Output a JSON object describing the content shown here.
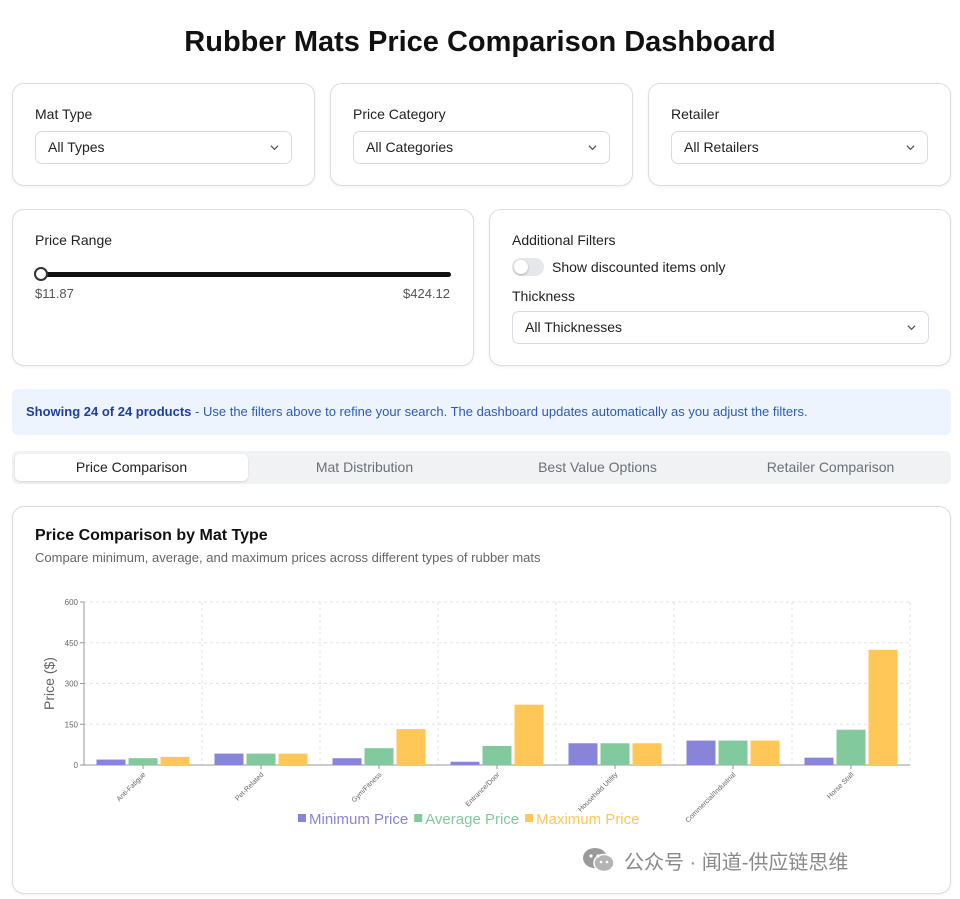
{
  "title": "Rubber Mats Price Comparison Dashboard",
  "filters": {
    "mat_type": {
      "label": "Mat Type",
      "value": "All Types"
    },
    "price_category": {
      "label": "Price Category",
      "value": "All Categories"
    },
    "retailer": {
      "label": "Retailer",
      "value": "All Retailers"
    }
  },
  "price_range": {
    "label": "Price Range",
    "min_label": "$11.87",
    "max_label": "$424.12",
    "min": 11.87,
    "max": 424.12,
    "current": 11.87
  },
  "additional_filters": {
    "label": "Additional Filters",
    "discount_toggle_label": "Show discounted items only",
    "discount_toggle_on": false,
    "thickness_label": "Thickness",
    "thickness_value": "All Thicknesses"
  },
  "info": {
    "bold": "Showing 24 of 24 products",
    "rest": " - Use the filters above to refine your search. The dashboard updates automatically as you adjust the filters."
  },
  "tabs": [
    "Price Comparison",
    "Mat Distribution",
    "Best Value Options",
    "Retailer Comparison"
  ],
  "active_tab": 0,
  "chart_header": {
    "title": "Price Comparison by Mat Type",
    "subtitle": "Compare minimum, average, and maximum prices across different types of rubber mats"
  },
  "colors": {
    "min": "#8884d8",
    "avg": "#82ca9d",
    "max": "#ffc658"
  },
  "chart_data": {
    "type": "bar",
    "categories": [
      "Anti-Fatigue",
      "Pet-Related",
      "Gym/Fitness",
      "Entrance/Door",
      "Household Utility",
      "Commercial/Industrial",
      "Horse Stall"
    ],
    "series": [
      {
        "name": "Minimum Price",
        "values": [
          20,
          42,
          25,
          12,
          80,
          90,
          27
        ]
      },
      {
        "name": "Average Price",
        "values": [
          25,
          42,
          62,
          70,
          80,
          90,
          130
        ]
      },
      {
        "name": "Maximum Price",
        "values": [
          30,
          42,
          132,
          222,
          80,
          90,
          424
        ]
      }
    ],
    "ylabel": "Price ($)",
    "yticks": [
      "0",
      "150",
      "300",
      "450",
      "600"
    ],
    "ylim": [
      0,
      600
    ],
    "grid": true,
    "legend": "bottom"
  },
  "watermark": "公众号 · 闻道-供应链思维"
}
